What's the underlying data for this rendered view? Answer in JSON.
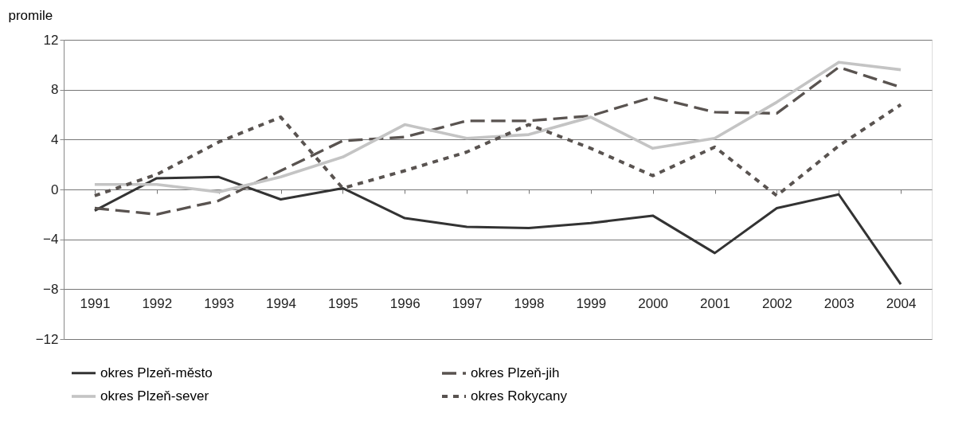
{
  "chart_data": {
    "type": "line",
    "ylabel": "promile",
    "categories": [
      "1991",
      "1992",
      "1993",
      "1994",
      "1995",
      "1996",
      "1997",
      "1998",
      "1999",
      "2000",
      "2001",
      "2002",
      "2003",
      "2004"
    ],
    "series": [
      {
        "name": "okres Plzeň-město",
        "color": "#333333",
        "line_style": "solid",
        "values": [
          -1.7,
          0.9,
          1.0,
          -0.8,
          0.1,
          -2.3,
          -3.0,
          -3.1,
          -2.7,
          -2.1,
          -5.1,
          -1.5,
          -0.4,
          -7.6
        ]
      },
      {
        "name": "okres Plzeň-jih",
        "color": "#595350",
        "line_style": "dashed",
        "values": [
          -1.5,
          -2.0,
          -0.9,
          1.5,
          3.9,
          4.2,
          5.5,
          5.5,
          5.9,
          7.4,
          6.2,
          6.1,
          9.8,
          8.2
        ]
      },
      {
        "name": "okres Plzeň-sever",
        "color": "#c4c4c4",
        "line_style": "solid",
        "values": [
          0.4,
          0.4,
          -0.2,
          1.0,
          2.6,
          5.2,
          4.1,
          4.4,
          5.8,
          3.3,
          4.1,
          7.0,
          10.2,
          9.6
        ]
      },
      {
        "name": "okres Rokycany",
        "color": "#595350",
        "line_style": "dotted",
        "values": [
          -0.5,
          1.2,
          3.8,
          5.8,
          0.1,
          1.5,
          3.0,
          5.2,
          3.3,
          1.1,
          3.4,
          -0.5,
          3.5,
          6.8
        ]
      }
    ],
    "ylim": [
      -12,
      12
    ],
    "yticks": [
      -12,
      -8,
      -4,
      0,
      4,
      8,
      12
    ],
    "grid": "y",
    "legend": "bottom"
  }
}
